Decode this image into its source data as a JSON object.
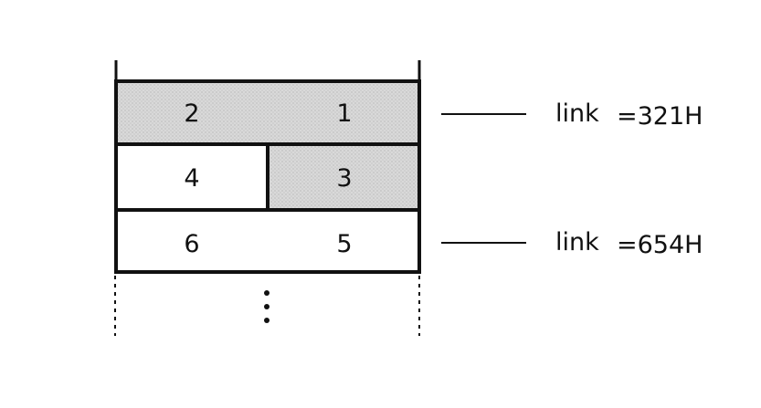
{
  "diagram": {
    "rows": [
      {
        "left": "2",
        "right": "1",
        "left_shaded": true,
        "right_shaded": true,
        "merged": true
      },
      {
        "left": "4",
        "right": "3",
        "left_shaded": false,
        "right_shaded": true,
        "merged": false
      },
      {
        "left": "6",
        "right": "5",
        "left_shaded": false,
        "right_shaded": false,
        "merged": true
      }
    ],
    "links": [
      {
        "label": "link",
        "value": "=321H"
      },
      {
        "label": "link",
        "value": "=654H"
      }
    ],
    "continuation": "⋮",
    "colors": {
      "shade": "#d6d6d6",
      "line": "#111111",
      "background": "#ffffff"
    }
  }
}
